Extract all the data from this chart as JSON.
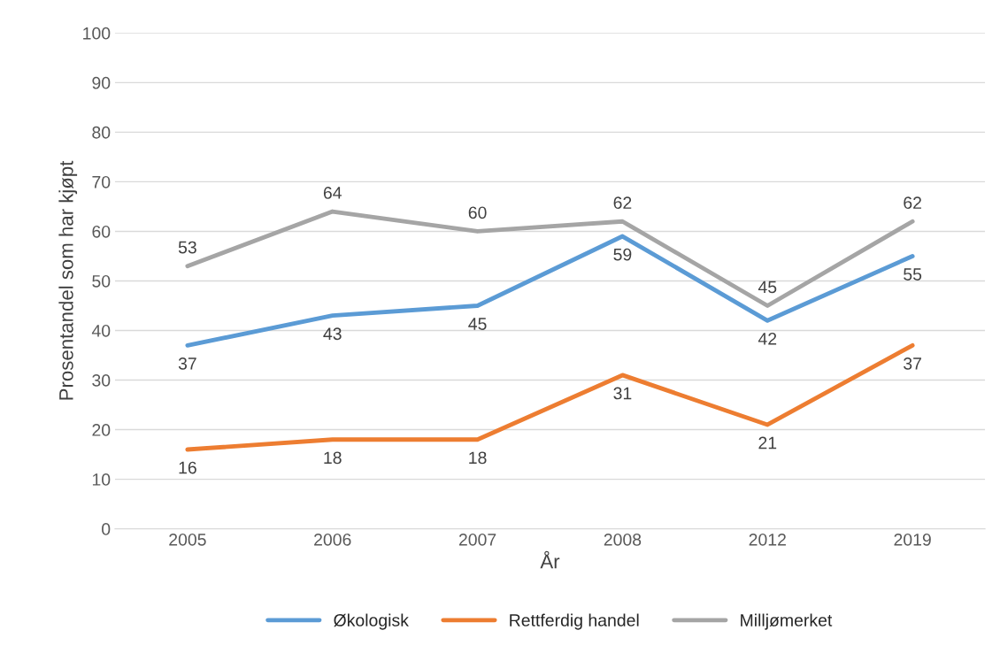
{
  "chart_data": {
    "type": "line",
    "xlabel": "År",
    "ylabel": "Prosentandel som har kjøpt",
    "categories": [
      "2005",
      "2006",
      "2007",
      "2008",
      "2012",
      "2019"
    ],
    "series": [
      {
        "name": "Økologisk",
        "color": "#5b9bd5",
        "values": [
          37,
          43,
          45,
          59,
          42,
          55
        ]
      },
      {
        "name": "Rettferdig handel",
        "color": "#ed7d31",
        "values": [
          16,
          18,
          18,
          31,
          21,
          37
        ]
      },
      {
        "name": "Milljømerket",
        "color": "#a5a5a5",
        "values": [
          53,
          64,
          60,
          62,
          45,
          62
        ]
      }
    ],
    "ylim": [
      0,
      100
    ],
    "yticks": [
      0,
      10,
      20,
      30,
      40,
      50,
      60,
      70,
      80,
      90,
      100
    ],
    "grid": "y",
    "legend": "bottom",
    "data_labels": true,
    "marker": "none",
    "line_style": "solid"
  }
}
